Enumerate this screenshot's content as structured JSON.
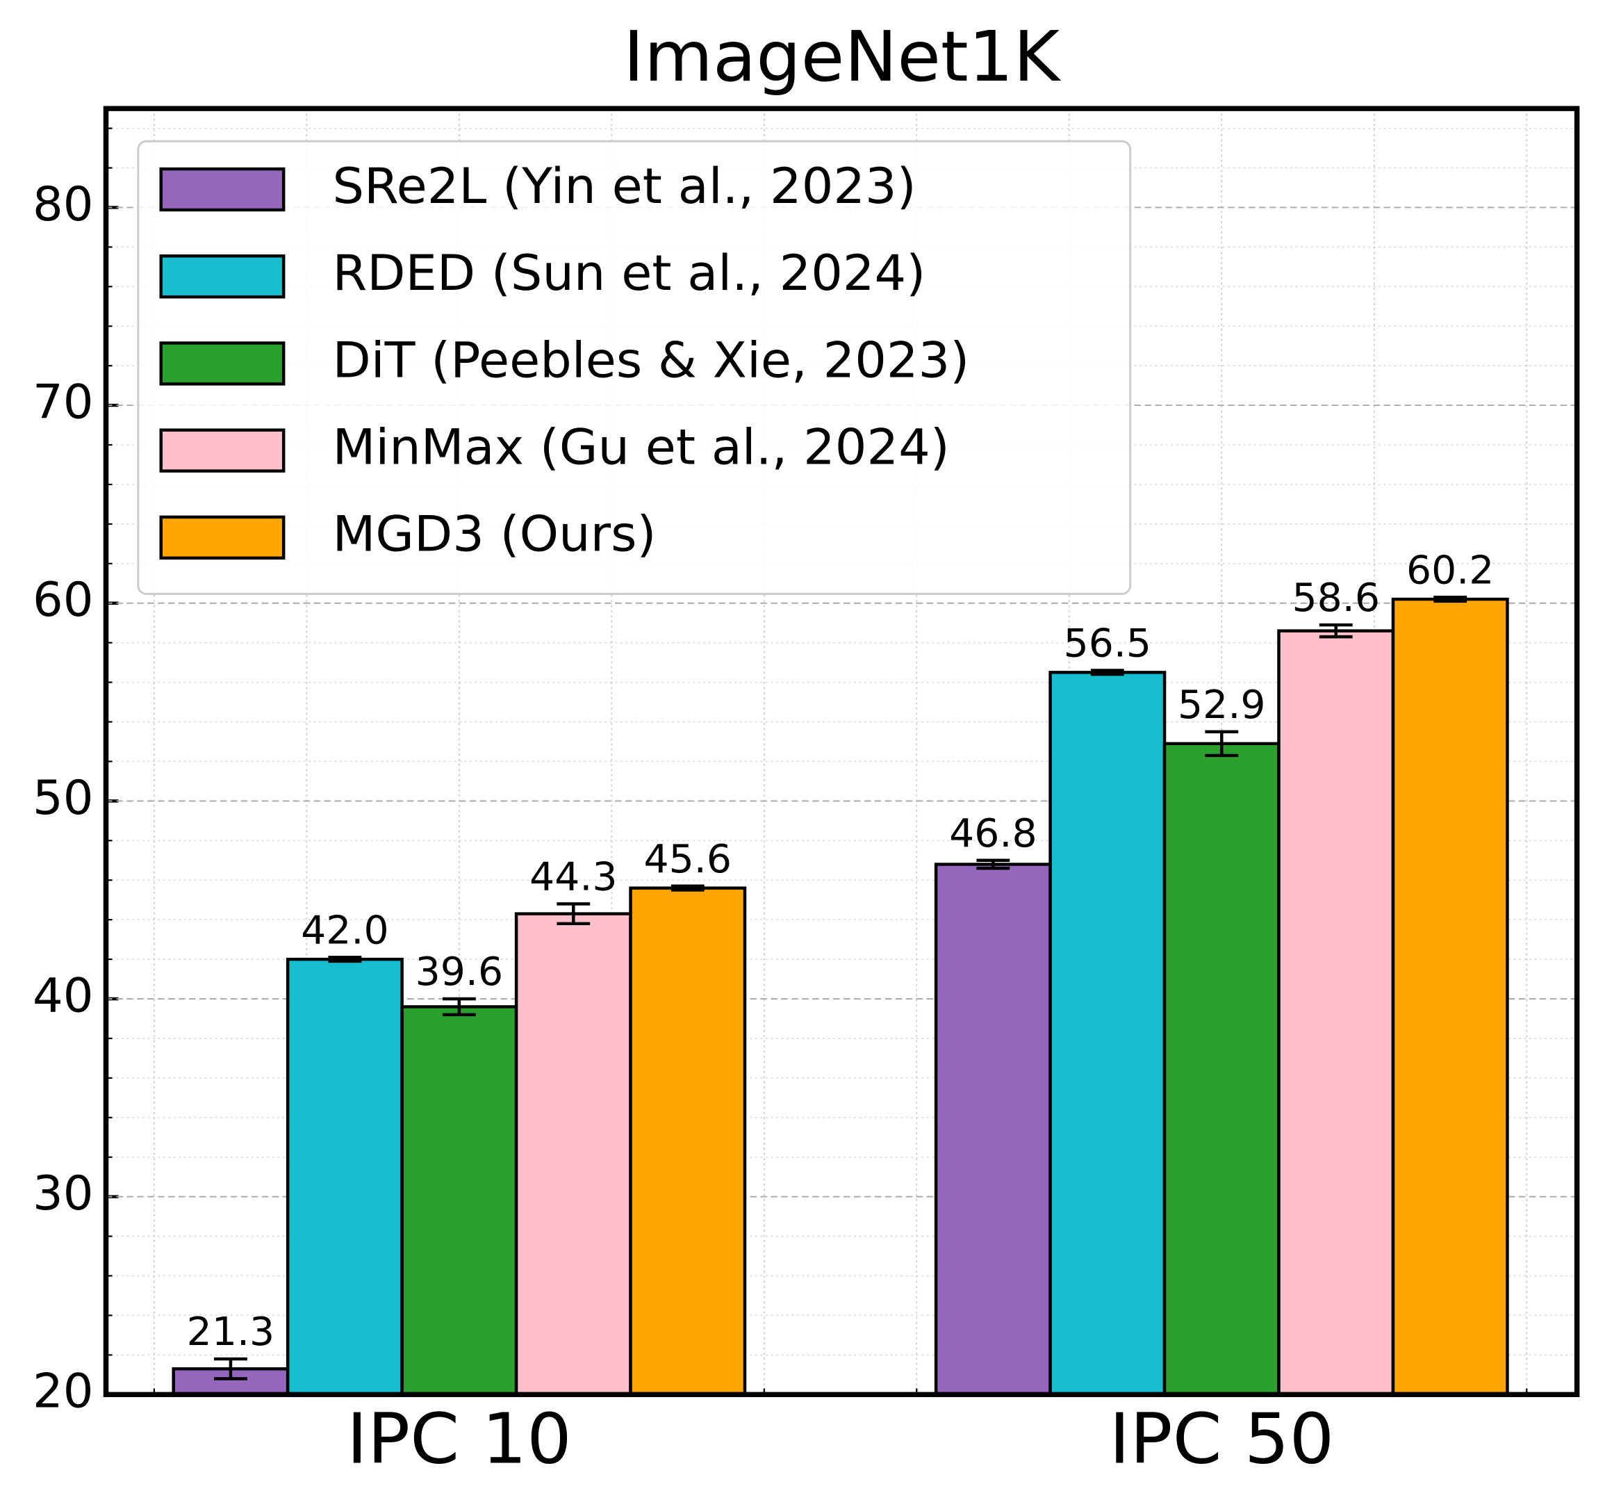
{
  "chart_data": {
    "type": "bar",
    "title": "ImageNet1K",
    "categories": [
      "IPC 10",
      "IPC 50"
    ],
    "series": [
      {
        "name": "SRe2L (Yin et al., 2023)",
        "color": "#9467bd",
        "values": [
          21.3,
          46.8
        ],
        "errors": [
          0.5,
          0.2
        ],
        "value_labels": [
          "21.3",
          "46.8"
        ]
      },
      {
        "name": "RDED (Sun et al., 2024)",
        "color": "#17becf",
        "values": [
          42.0,
          56.5
        ],
        "errors": [
          0.1,
          0.1
        ],
        "value_labels": [
          "42.0",
          "56.5"
        ]
      },
      {
        "name": "DiT (Peebles & Xie, 2023)",
        "color": "#2ca02c",
        "values": [
          39.6,
          52.9
        ],
        "errors": [
          0.4,
          0.6
        ],
        "value_labels": [
          "39.6",
          "52.9"
        ]
      },
      {
        "name": "MinMax (Gu et al., 2024)",
        "color": "#ffc0cb",
        "values": [
          44.3,
          58.6
        ],
        "errors": [
          0.5,
          0.3
        ],
        "value_labels": [
          "44.3",
          "58.6"
        ]
      },
      {
        "name": "MGD3 (Ours)",
        "color": "#ffa500",
        "values": [
          45.6,
          60.2
        ],
        "errors": [
          0.1,
          0.1
        ],
        "value_labels": [
          "45.6",
          "60.2"
        ]
      }
    ],
    "ylim": [
      20,
      85
    ],
    "yticks": [
      20,
      30,
      40,
      50,
      60,
      70,
      80
    ],
    "grid": true,
    "legend": "upper left"
  }
}
